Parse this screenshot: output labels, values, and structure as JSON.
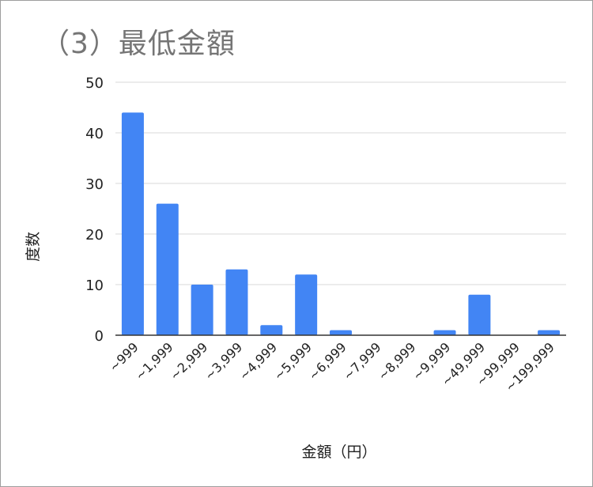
{
  "chart_data": {
    "type": "bar",
    "title": "（3）最低金額",
    "xlabel": "金額（円）",
    "ylabel": "度数",
    "categories": [
      "~999",
      "~1,999",
      "~2,999",
      "~3,999",
      "~4,999",
      "~5,999",
      "~6,999",
      "~7,999",
      "~8,999",
      "~9,999",
      "~49,999",
      "~99,999",
      "~199,999"
    ],
    "values": [
      44,
      26,
      10,
      13,
      2,
      12,
      1,
      0,
      0,
      1,
      8,
      0,
      1
    ],
    "ylim": [
      0,
      50
    ],
    "yticks": [
      0,
      10,
      20,
      30,
      40,
      50
    ],
    "grid": true,
    "legend": "none",
    "bar_color": "#4285f4",
    "grid_color": "#d9d9d9"
  }
}
